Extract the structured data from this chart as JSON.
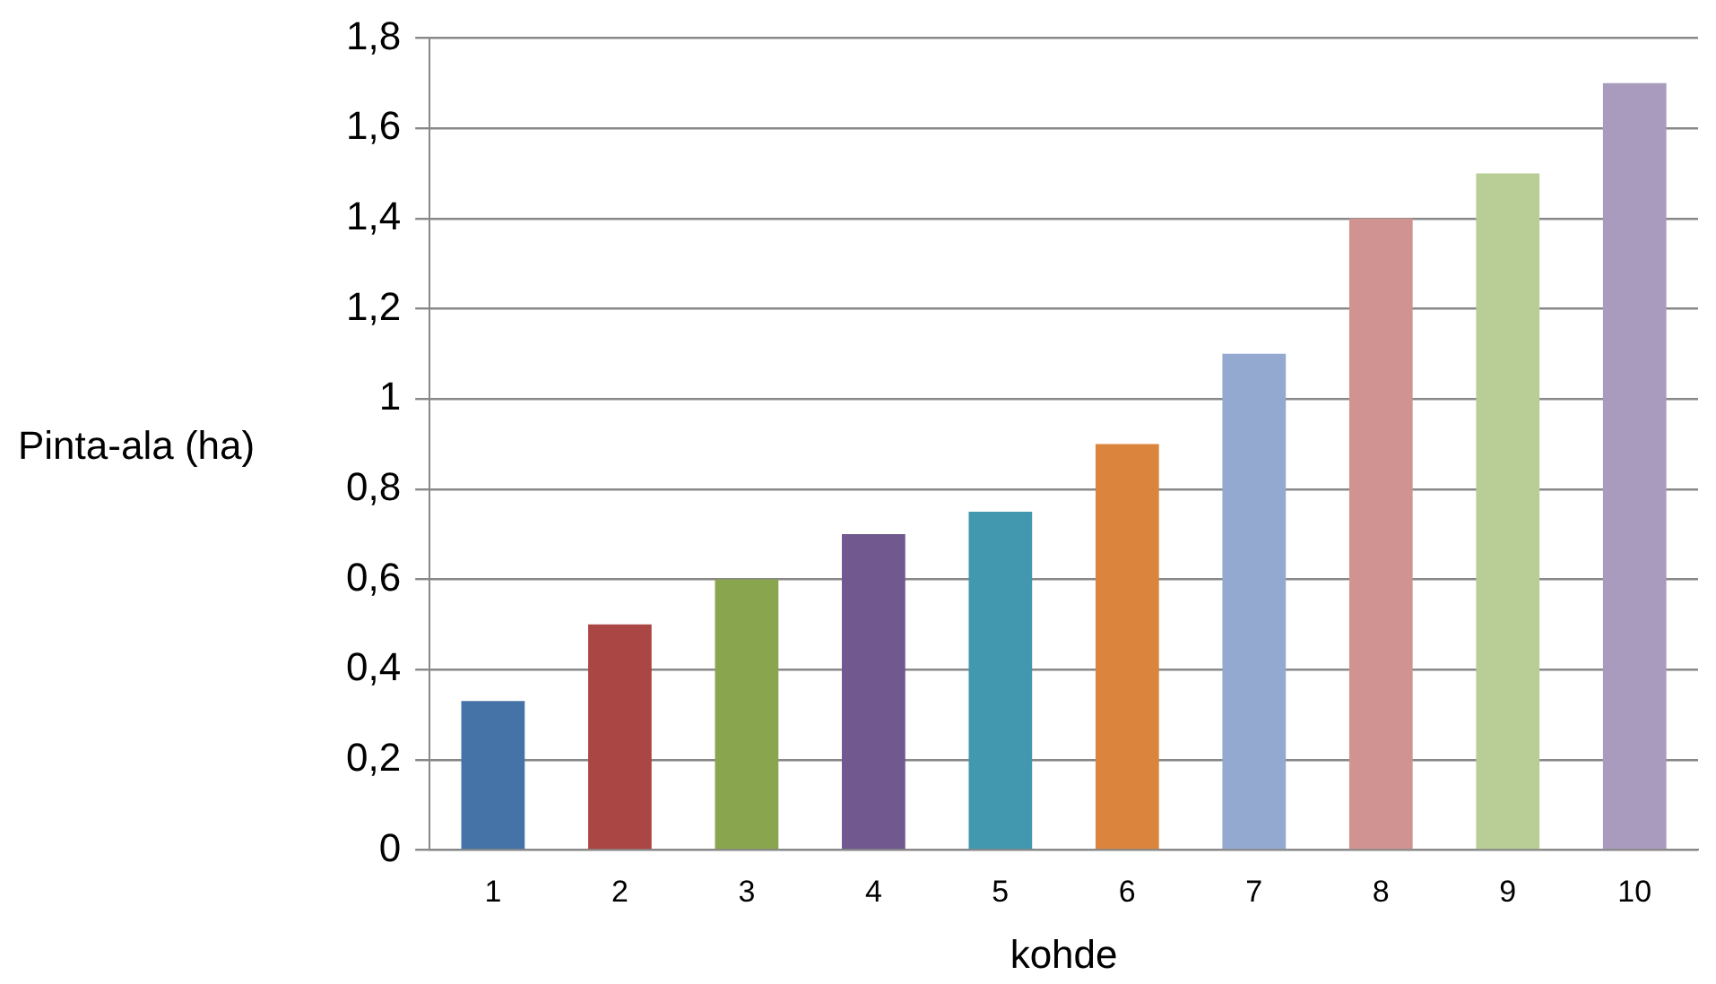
{
  "chart_data": {
    "type": "bar",
    "xlabel": "kohde",
    "ylabel": "Pinta-ala (ha)",
    "categories": [
      "1",
      "2",
      "3",
      "4",
      "5",
      "6",
      "7",
      "8",
      "9",
      "10"
    ],
    "values": [
      0.33,
      0.5,
      0.6,
      0.7,
      0.75,
      0.9,
      1.1,
      1.4,
      1.5,
      1.7
    ],
    "colors": [
      "#4573a7",
      "#aa4643",
      "#89a54e",
      "#71588f",
      "#4198af",
      "#db843d",
      "#93a9cf",
      "#d19392",
      "#b9cd96",
      "#a99bbd"
    ],
    "ylim": [
      0,
      1.8
    ],
    "yticks": [
      0,
      {
        "value": 0.2,
        "label": "0,2"
      },
      {
        "value": 0.4,
        "label": "0,4"
      },
      {
        "value": 0.6,
        "label": "0,6"
      },
      {
        "value": 0.8,
        "label": "0,8"
      },
      1,
      {
        "value": 1.2,
        "label": "1,2"
      },
      {
        "value": 1.4,
        "label": "1,4"
      },
      {
        "value": 1.6,
        "label": "1,6"
      },
      {
        "value": 1.8,
        "label": "1,8"
      }
    ],
    "grid": "y",
    "legend": false
  }
}
